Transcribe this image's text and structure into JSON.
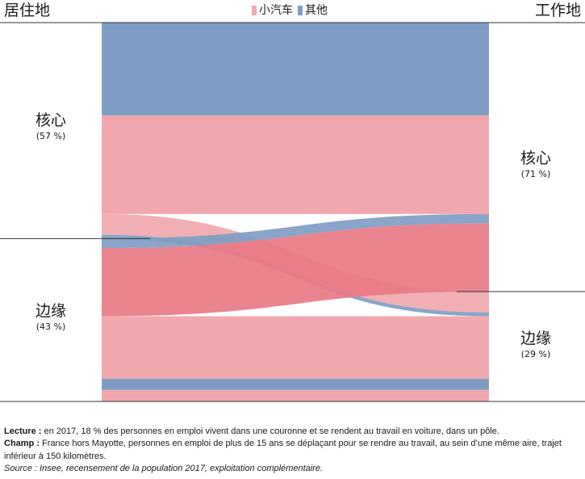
{
  "header": {
    "left_title": "居住地",
    "right_title": "工作地"
  },
  "legend": [
    {
      "label": "小汽车",
      "color": "#f0a8ae"
    },
    {
      "label": "其他",
      "color": "#7f9dc4"
    }
  ],
  "colors": {
    "car": "#f0a8ae",
    "car_highlight": "#e87a84",
    "other": "#7f9dc4",
    "divider": "#333333"
  },
  "nodes": {
    "residence": [
      {
        "name": "核心",
        "share": "(57 %)"
      },
      {
        "name": "边缘",
        "share": "(43 %)"
      }
    ],
    "workplace": [
      {
        "name": "核心",
        "share": "(71 %)"
      },
      {
        "name": "边缘",
        "share": "(29 %)"
      }
    ]
  },
  "chart_data": {
    "type": "sankey",
    "unit": "%",
    "left_nodes": [
      {
        "name": "核心",
        "value": 57
      },
      {
        "name": "边缘",
        "value": 43
      }
    ],
    "right_nodes": [
      {
        "name": "核心",
        "value": 71
      },
      {
        "name": "边缘",
        "value": 29
      }
    ],
    "flows": [
      {
        "from": "核心",
        "to": "核心",
        "mode": "其他",
        "value": 24.5
      },
      {
        "from": "核心",
        "to": "核心",
        "mode": "小汽车",
        "value": 26
      },
      {
        "from": "核心",
        "to": "边缘",
        "mode": "小汽车",
        "value": 5.5
      },
      {
        "from": "核心",
        "to": "边缘",
        "mode": "其他",
        "value": 1
      },
      {
        "from": "边缘",
        "to": "核心",
        "mode": "其他",
        "value": 2.5
      },
      {
        "from": "边缘",
        "to": "核心",
        "mode": "小汽车",
        "value": 18
      },
      {
        "from": "边缘",
        "to": "边缘",
        "mode": "小汽车",
        "value": 16.5
      },
      {
        "from": "边缘",
        "to": "边缘",
        "mode": "其他",
        "value": 3
      },
      {
        "from": "边缘",
        "to": "边缘",
        "mode": "小汽车",
        "value": 3
      }
    ],
    "highlighted_flow": {
      "from": "边缘",
      "to": "核心",
      "mode": "小汽车"
    }
  },
  "notes": {
    "lecture_label": "Lecture :",
    "lecture_text": " en 2017, 18 % des personnes en emploi vivent dans une couronne et se rendent au travail en voiture, dans un pôle.",
    "champ_label": "Champ :",
    "champ_text": " France hors Mayotte, personnes en emploi de plus de 15 ans se déplaçant pour se rendre au travail, au sein d’une même aire, trajet inférieur à 150 kilomètres.",
    "source": "Source : Insee, recensement de la population 2017, exploitation complémentaire."
  }
}
